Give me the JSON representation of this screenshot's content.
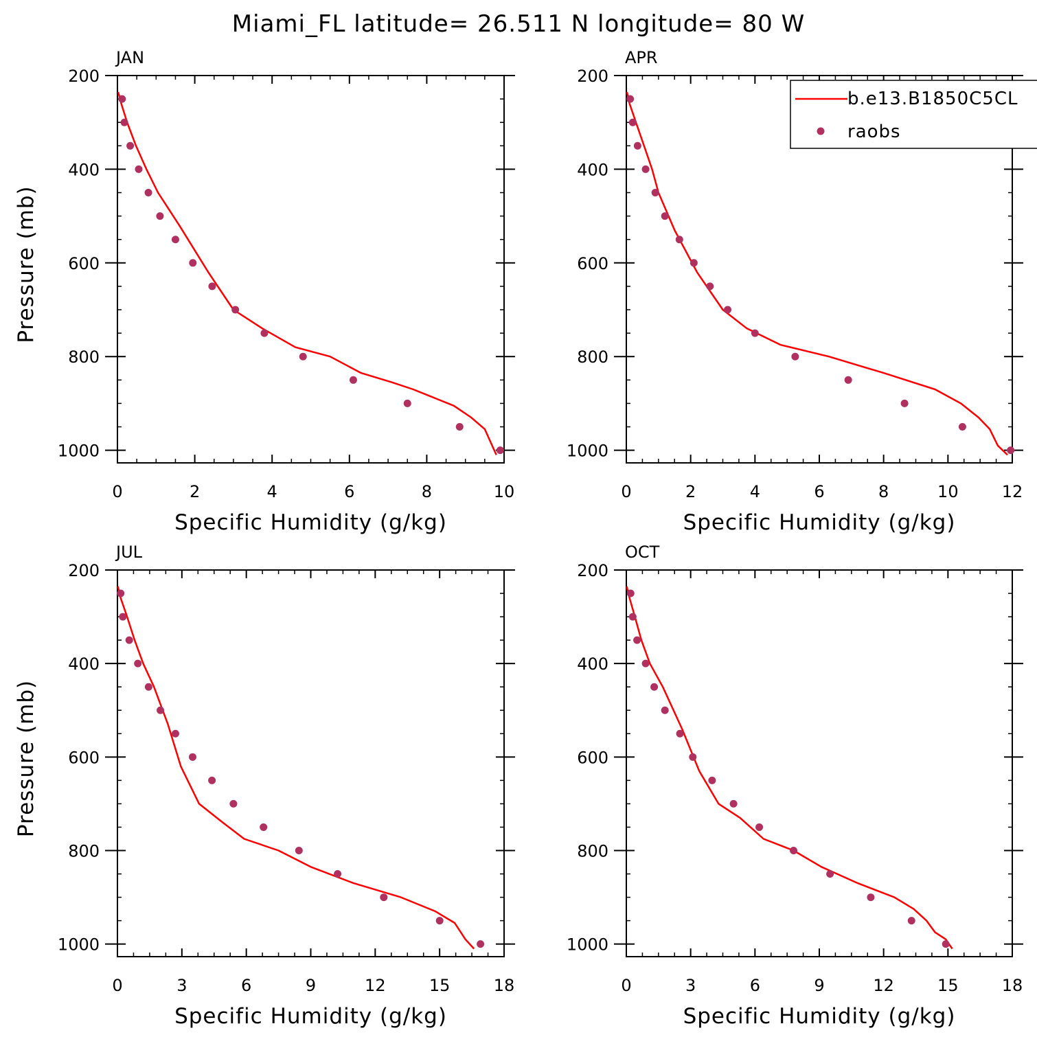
{
  "title": "Miami_FL  latitude= 26.511 N longitude= 80 W",
  "legend": {
    "model_label": "b.e13.B1850C5CL",
    "obs_label": "raobs",
    "model_color": "#ff0000",
    "obs_color": "#b03060"
  },
  "chart_data": [
    {
      "type": "line",
      "panel": "JAN",
      "xlabel": "Specific Humidity (g/kg)",
      "ylabel": "Pressure (mb)",
      "xlim": [
        0,
        10
      ],
      "ylim": [
        1000,
        200
      ],
      "xticks": [
        0,
        2,
        4,
        6,
        8,
        10
      ],
      "yticks": [
        200,
        400,
        600,
        800,
        1000
      ],
      "series": [
        {
          "name": "b.e13.B1850C5CL",
          "kind": "line",
          "x": [
            0.02,
            0.1,
            0.25,
            0.48,
            0.75,
            1.05,
            1.6,
            2.35,
            3.0,
            3.75,
            4.6,
            5.5,
            6.3,
            7.1,
            7.65,
            8.1,
            8.7,
            9.15,
            9.5,
            9.8
          ],
          "y": [
            235,
            260,
            300,
            350,
            400,
            450,
            520,
            620,
            700,
            740,
            780,
            800,
            835,
            855,
            870,
            885,
            905,
            930,
            955,
            1010
          ]
        },
        {
          "name": "raobs",
          "kind": "scatter",
          "x": [
            0.12,
            0.18,
            0.33,
            0.55,
            0.8,
            1.1,
            1.5,
            1.95,
            2.45,
            3.05,
            3.8,
            4.8,
            6.1,
            7.5,
            8.85,
            9.9
          ],
          "y": [
            250,
            300,
            350,
            400,
            450,
            500,
            550,
            600,
            650,
            700,
            750,
            800,
            850,
            900,
            950,
            1000
          ]
        }
      ]
    },
    {
      "type": "line",
      "panel": "APR",
      "xlabel": "Specific Humidity (g/kg)",
      "ylabel": "",
      "xlim": [
        0,
        12
      ],
      "ylim": [
        1000,
        200
      ],
      "xticks": [
        0,
        2,
        4,
        6,
        8,
        10,
        12
      ],
      "yticks": [
        200,
        400,
        600,
        800,
        1000
      ],
      "series": [
        {
          "name": "b.e13.B1850C5CL",
          "kind": "line",
          "x": [
            0.02,
            0.1,
            0.3,
            0.55,
            0.8,
            1.0,
            1.5,
            2.2,
            3.0,
            3.75,
            4.8,
            6.3,
            8.0,
            9.6,
            10.4,
            10.95,
            11.3,
            11.55,
            11.85
          ],
          "y": [
            235,
            260,
            300,
            350,
            400,
            450,
            530,
            620,
            700,
            740,
            775,
            800,
            835,
            870,
            900,
            930,
            955,
            990,
            1010
          ]
        },
        {
          "name": "raobs",
          "kind": "scatter",
          "x": [
            0.12,
            0.2,
            0.35,
            0.6,
            0.9,
            1.2,
            1.65,
            2.1,
            2.6,
            3.15,
            4.0,
            5.25,
            6.9,
            8.65,
            10.45,
            11.95
          ],
          "y": [
            250,
            300,
            350,
            400,
            450,
            500,
            550,
            600,
            650,
            700,
            750,
            800,
            850,
            900,
            950,
            1000
          ]
        }
      ]
    },
    {
      "type": "line",
      "panel": "JUL",
      "xlabel": "Specific Humidity (g/kg)",
      "ylabel": "Pressure (mb)",
      "xlim": [
        0,
        18
      ],
      "ylim": [
        1000,
        200
      ],
      "xticks": [
        0,
        3,
        6,
        9,
        12,
        15,
        18
      ],
      "yticks": [
        200,
        400,
        600,
        800,
        1000
      ],
      "series": [
        {
          "name": "b.e13.B1850C5CL",
          "kind": "line",
          "x": [
            0.02,
            0.15,
            0.45,
            0.8,
            1.2,
            1.7,
            2.35,
            2.95,
            3.8,
            4.9,
            5.9,
            7.5,
            9.0,
            11.0,
            13.2,
            14.8,
            15.7,
            16.2,
            16.6
          ],
          "y": [
            235,
            260,
            300,
            350,
            400,
            450,
            530,
            620,
            700,
            740,
            775,
            800,
            835,
            870,
            900,
            930,
            955,
            990,
            1010
          ]
        },
        {
          "name": "raobs",
          "kind": "scatter",
          "x": [
            0.15,
            0.25,
            0.55,
            0.95,
            1.45,
            2.0,
            2.7,
            3.5,
            4.4,
            5.4,
            6.8,
            8.45,
            10.25,
            12.4,
            15.0,
            16.9
          ],
          "y": [
            250,
            300,
            350,
            400,
            450,
            500,
            550,
            600,
            650,
            700,
            750,
            800,
            850,
            900,
            950,
            1000
          ]
        }
      ]
    },
    {
      "type": "line",
      "panel": "OCT",
      "xlabel": "Specific Humidity (g/kg)",
      "ylabel": "",
      "xlim": [
        0,
        18
      ],
      "ylim": [
        1000,
        200
      ],
      "xticks": [
        0,
        3,
        6,
        9,
        12,
        15,
        18
      ],
      "yticks": [
        200,
        400,
        600,
        800,
        1000
      ],
      "series": [
        {
          "name": "b.e13.B1850C5CL",
          "kind": "line",
          "x": [
            0.02,
            0.15,
            0.4,
            0.7,
            1.1,
            1.7,
            2.6,
            3.4,
            4.3,
            5.3,
            6.4,
            7.8,
            9.1,
            10.8,
            12.5,
            13.4,
            14.0,
            14.4,
            14.9,
            15.2
          ],
          "y": [
            235,
            260,
            300,
            350,
            400,
            450,
            540,
            630,
            700,
            730,
            775,
            800,
            835,
            870,
            900,
            925,
            950,
            975,
            990,
            1010
          ]
        },
        {
          "name": "raobs",
          "kind": "scatter",
          "x": [
            0.2,
            0.3,
            0.5,
            0.9,
            1.3,
            1.8,
            2.5,
            3.1,
            4.0,
            5.0,
            6.2,
            7.8,
            9.5,
            11.4,
            13.3,
            14.9
          ],
          "y": [
            250,
            300,
            350,
            400,
            450,
            500,
            550,
            600,
            650,
            700,
            750,
            800,
            850,
            900,
            950,
            1000
          ]
        }
      ]
    }
  ]
}
